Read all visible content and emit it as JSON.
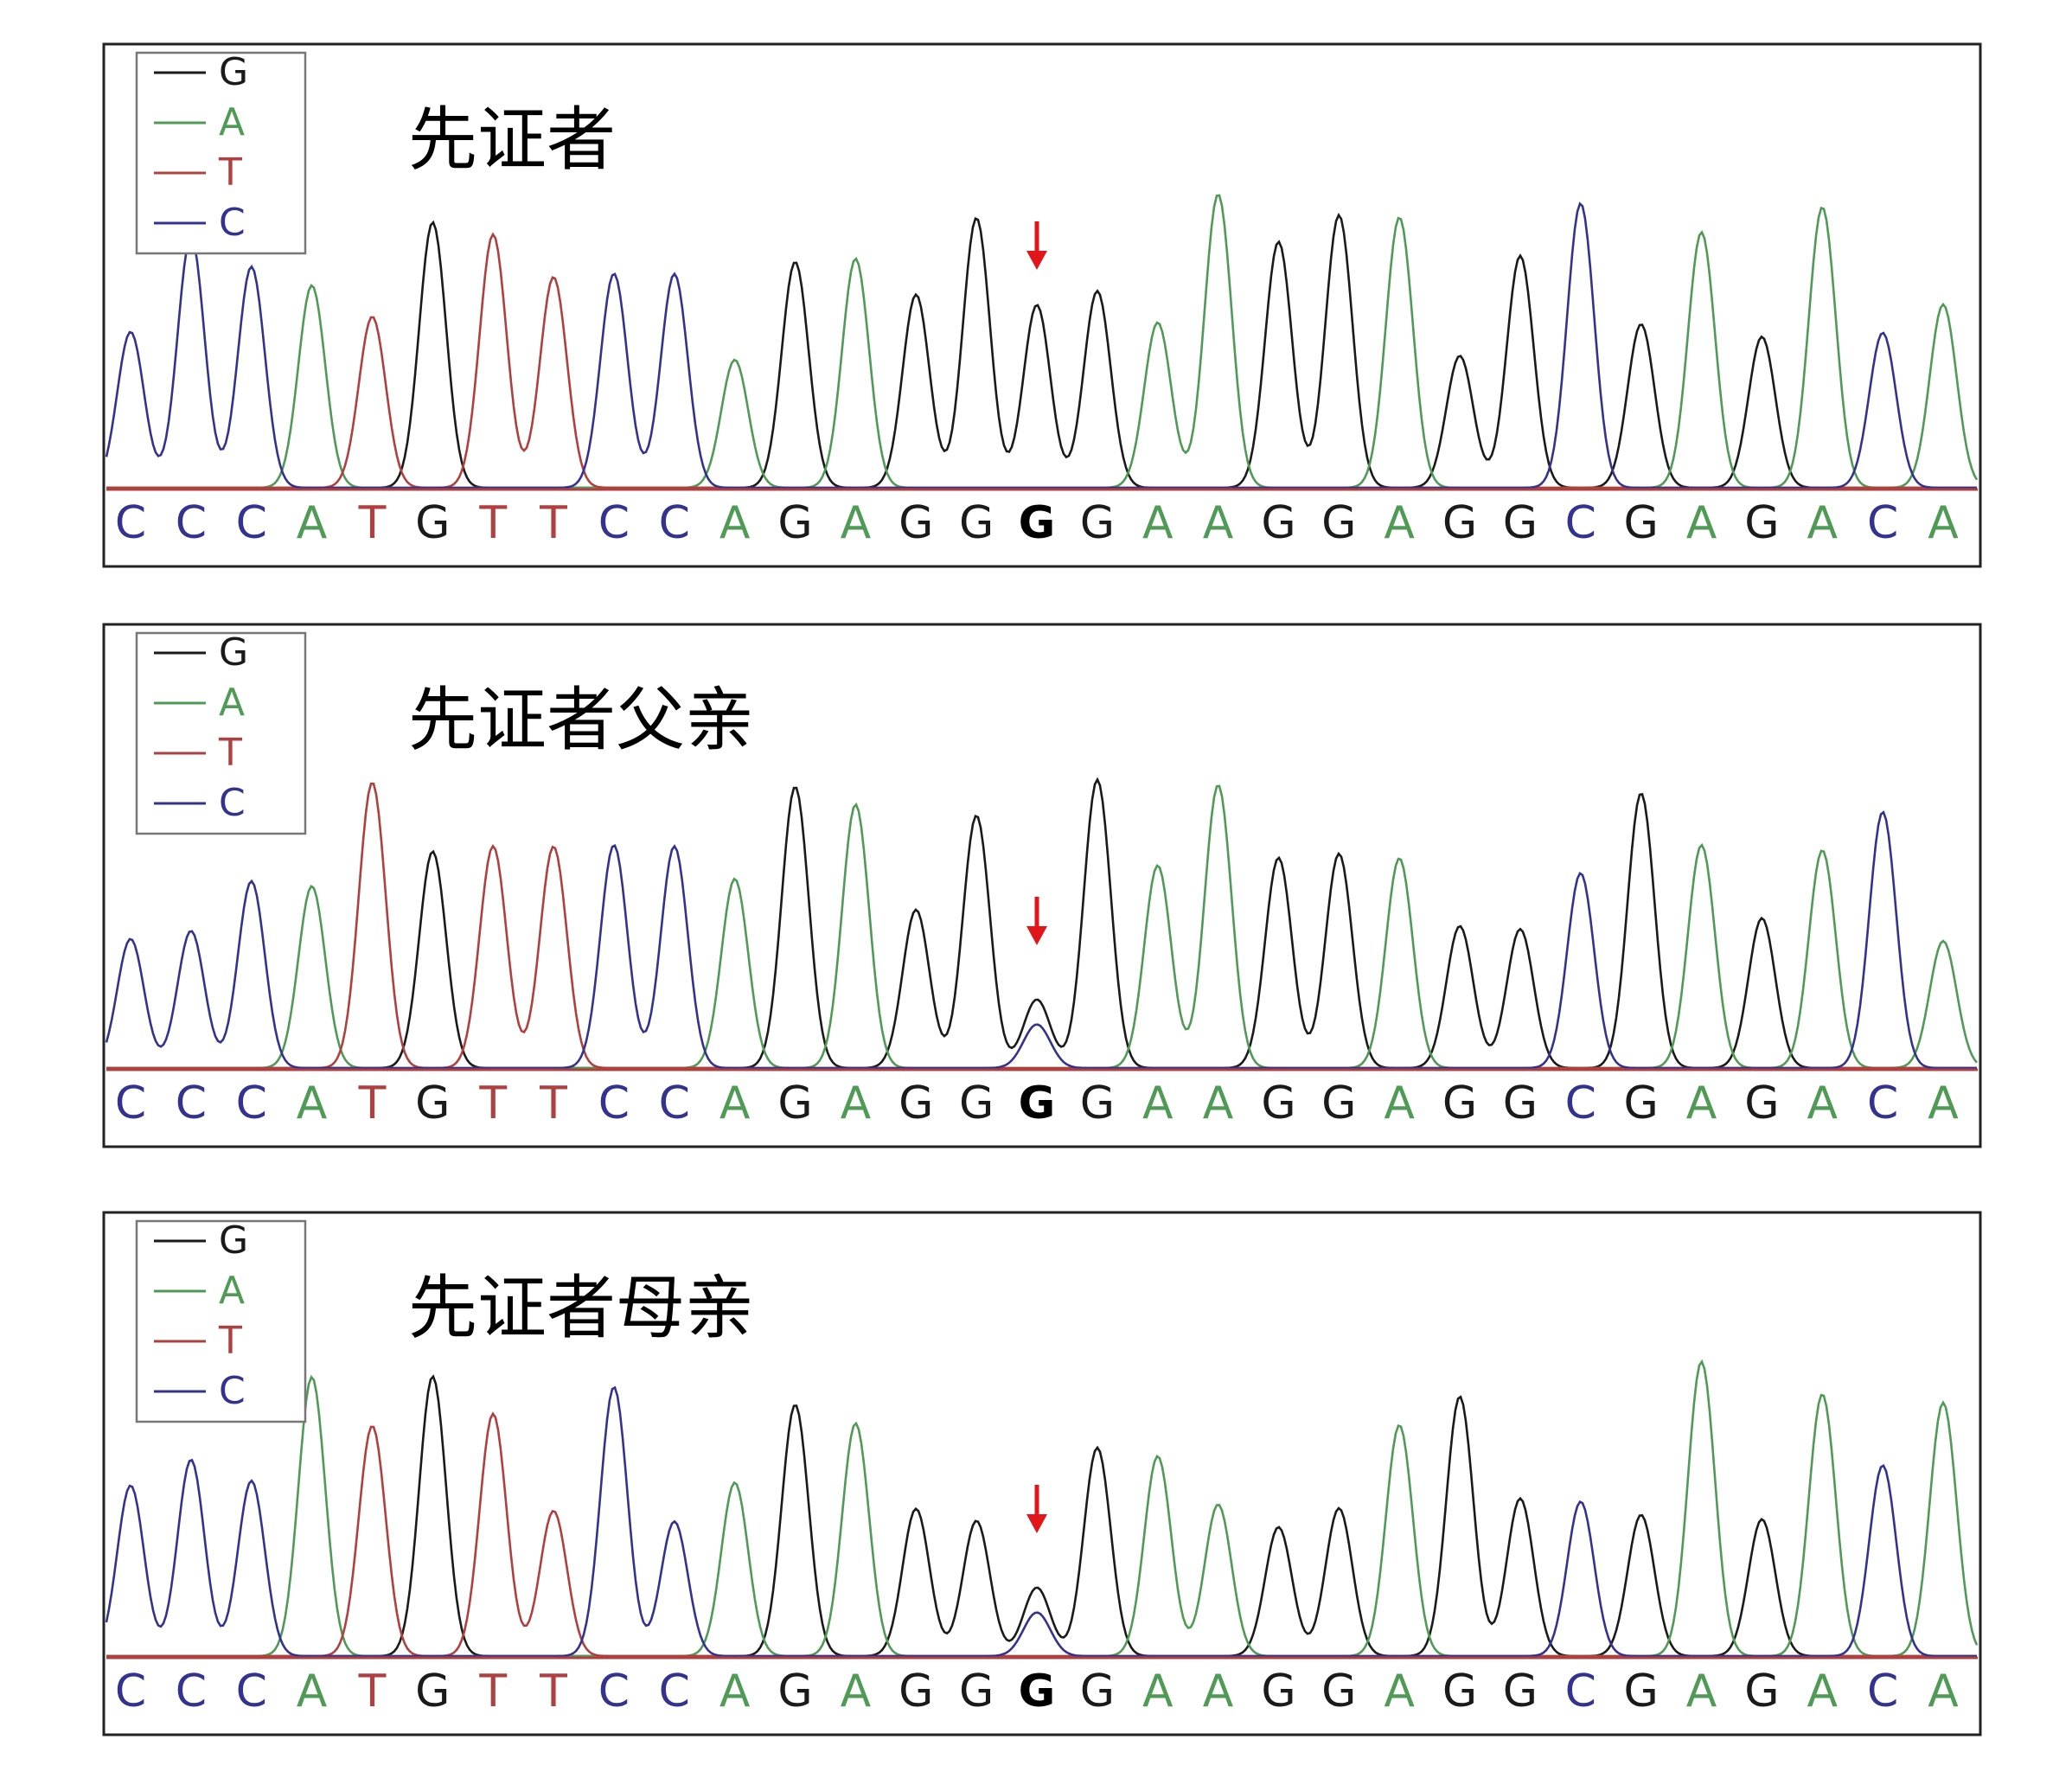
{
  "panels": [
    {
      "title": "先证者",
      "legend": [
        {
          "label": "G",
          "color": "#1a1a1a"
        },
        {
          "label": "A",
          "color": "#4f9a55"
        },
        {
          "label": "T",
          "color": "#b0403f"
        },
        {
          "label": "C",
          "color": "#33338f"
        }
      ],
      "bases": [
        "C",
        "C",
        "C",
        "A",
        "T",
        "G",
        "T",
        "T",
        "C",
        "C",
        "A",
        "G",
        "A",
        "G",
        "G",
        "G",
        "G",
        "A",
        "A",
        "G",
        "G",
        "A",
        "G",
        "G",
        "C",
        "G",
        "A",
        "G",
        "A",
        "C",
        "A"
      ],
      "highlight": 15
    },
    {
      "title": "先证者父亲",
      "legend": [
        {
          "label": "G",
          "color": "#1a1a1a"
        },
        {
          "label": "A",
          "color": "#4f9a55"
        },
        {
          "label": "T",
          "color": "#b0403f"
        },
        {
          "label": "C",
          "color": "#33338f"
        }
      ],
      "bases": [
        "C",
        "C",
        "C",
        "A",
        "T",
        "G",
        "T",
        "T",
        "C",
        "C",
        "A",
        "G",
        "A",
        "G",
        "G",
        "G",
        "G",
        "A",
        "A",
        "G",
        "G",
        "A",
        "G",
        "G",
        "C",
        "G",
        "A",
        "G",
        "A",
        "C",
        "A"
      ],
      "highlight": 15
    },
    {
      "title": "先证者母亲",
      "legend": [
        {
          "label": "G",
          "color": "#1a1a1a"
        },
        {
          "label": "A",
          "color": "#4f9a55"
        },
        {
          "label": "T",
          "color": "#b0403f"
        },
        {
          "label": "C",
          "color": "#33338f"
        }
      ],
      "bases": [
        "C",
        "C",
        "C",
        "A",
        "T",
        "G",
        "T",
        "T",
        "C",
        "C",
        "A",
        "G",
        "A",
        "G",
        "G",
        "G",
        "G",
        "A",
        "A",
        "G",
        "G",
        "A",
        "G",
        "G",
        "C",
        "G",
        "A",
        "G",
        "A",
        "C",
        "A"
      ],
      "highlight": 15
    }
  ]
}
